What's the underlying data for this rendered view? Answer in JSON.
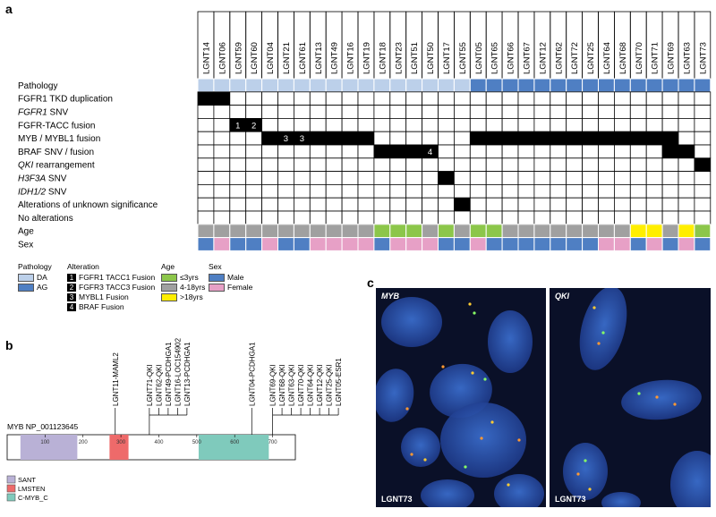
{
  "panels": {
    "a": "a",
    "b": "b",
    "c": "c"
  },
  "samples": [
    "LGNT14",
    "LGNT06",
    "LGNT59",
    "LGNT60",
    "LGNT04",
    "LGNT21",
    "LGNT61",
    "LGNT13",
    "LGNT49",
    "LGNT16",
    "LGNT19",
    "LGNT18",
    "LGNT23",
    "LGNT51",
    "LGNT50",
    "LGNT17",
    "LGNT55",
    "LGNT05",
    "LGNT65",
    "LGNT66",
    "LGNT67",
    "LGNT12",
    "LGNT62",
    "LGNT72",
    "LGNT25",
    "LGNT64",
    "LGNT68",
    "LGNT70",
    "LGNT71",
    "LGNT69",
    "LGNT63",
    "LGNT73"
  ],
  "rows": [
    {
      "label": "Pathology",
      "italic": false
    },
    {
      "label": "FGFR1 TKD duplication",
      "italic": false
    },
    {
      "label": "FGFR1 SNV",
      "italic": true,
      "italic_part": "FGFR1",
      "rest": " SNV"
    },
    {
      "label": "FGFR-TACC fusion",
      "italic": false
    },
    {
      "label": "MYB / MYBL1 fusion",
      "italic": false
    },
    {
      "label": "BRAF SNV / fusion",
      "italic": false
    },
    {
      "label": "QKI rearrangement",
      "italic": true,
      "italic_part": "QKI",
      "rest": " rearrangement"
    },
    {
      "label": "H3F3A SNV",
      "italic": true,
      "italic_part": "H3F3A",
      "rest": " SNV"
    },
    {
      "label": "IDH1/2 SNV",
      "italic": true,
      "italic_part": "IDH1/2",
      "rest": " SNV"
    },
    {
      "label": "Alterations of unknown significance",
      "italic": false
    },
    {
      "label": "No alterations",
      "italic": false
    },
    {
      "label": "Age",
      "italic": false
    },
    {
      "label": "Sex",
      "italic": false
    }
  ],
  "colors": {
    "DA": "#bcd0ea",
    "AG": "#4f7fc3",
    "young": "#8cc64a",
    "mid": "#a0a0a0",
    "old": "#ffee00",
    "male": "#4f7fc3",
    "female": "#e7a0c6",
    "alt": "#000000"
  },
  "pathology": [
    "DA",
    "DA",
    "DA",
    "DA",
    "DA",
    "DA",
    "DA",
    "DA",
    "DA",
    "DA",
    "DA",
    "DA",
    "DA",
    "DA",
    "DA",
    "DA",
    "DA",
    "AG",
    "AG",
    "AG",
    "AG",
    "AG",
    "AG",
    "AG",
    "AG",
    "AG",
    "AG",
    "AG",
    "AG",
    "AG",
    "AG",
    "AG"
  ],
  "alterations": {
    "1": [
      0,
      1
    ],
    "3": [
      2,
      3
    ],
    "4": [
      4,
      5,
      6,
      7,
      8,
      9,
      10,
      17,
      18,
      19,
      20,
      21,
      22,
      23,
      24,
      25,
      26,
      27,
      28,
      29
    ],
    "5": [
      11,
      12,
      13,
      14,
      29,
      30
    ],
    "6": [
      31
    ],
    "7": [
      15
    ],
    "9": [
      16
    ]
  },
  "cell_numbers": [
    {
      "row": 3,
      "col": 2,
      "text": "1"
    },
    {
      "row": 3,
      "col": 3,
      "text": "2"
    },
    {
      "row": 4,
      "col": 5,
      "text": "3"
    },
    {
      "row": 4,
      "col": 6,
      "text": "3"
    },
    {
      "row": 5,
      "col": 14,
      "text": "4"
    }
  ],
  "age": [
    "mid",
    "mid",
    "mid",
    "mid",
    "mid",
    "mid",
    "mid",
    "mid",
    "mid",
    "mid",
    "mid",
    "young",
    "young",
    "young",
    "mid",
    "young",
    "mid",
    "young",
    "young",
    "mid",
    "mid",
    "mid",
    "mid",
    "mid",
    "mid",
    "mid",
    "mid",
    "old",
    "old",
    "mid",
    "old",
    "young"
  ],
  "sex": [
    "male",
    "female",
    "male",
    "male",
    "female",
    "male",
    "male",
    "female",
    "female",
    "female",
    "female",
    "male",
    "female",
    "female",
    "female",
    "male",
    "male",
    "female",
    "male",
    "male",
    "male",
    "male",
    "male",
    "male",
    "male",
    "female",
    "female",
    "male",
    "female",
    "male",
    "female",
    "male"
  ],
  "legend": {
    "pathology": {
      "title": "Pathology",
      "items": [
        {
          "key": "DA",
          "label": "DA"
        },
        {
          "key": "AG",
          "label": "AG"
        }
      ]
    },
    "alteration": {
      "title": "Alteration",
      "items": [
        {
          "n": "1",
          "label": "FGFR1 TACC1 Fusion"
        },
        {
          "n": "2",
          "label": "FGFR3 TACC3 Fusion"
        },
        {
          "n": "3",
          "label": "MYBL1 Fusion"
        },
        {
          "n": "4",
          "label": "BRAF Fusion"
        }
      ]
    },
    "age": {
      "title": "Age",
      "items": [
        {
          "key": "young",
          "label": "≤3yrs"
        },
        {
          "key": "mid",
          "label": "4-18yrs"
        },
        {
          "key": "old",
          "label": ">18yrs"
        }
      ]
    },
    "sex": {
      "title": "Sex",
      "items": [
        {
          "key": "male",
          "label": "Male"
        },
        {
          "key": "female",
          "label": "Female"
        }
      ]
    }
  },
  "protein": {
    "name": "MYB NP_001123645",
    "length": 760,
    "ticks": [
      100,
      200,
      300,
      400,
      500,
      600,
      700
    ],
    "domains": [
      {
        "name": "SANT",
        "start": 35,
        "end": 185,
        "color": "#b9b1d6"
      },
      {
        "name": "LMSTEN",
        "start": 270,
        "end": 320,
        "color": "#ee6a6a"
      },
      {
        "name": "C-MYB_C",
        "start": 505,
        "end": 690,
        "color": "#7fcabc"
      }
    ],
    "groups": [
      {
        "pos": 285,
        "labels": [
          "LGNT11-MAML2"
        ]
      },
      {
        "pos": 375,
        "labels": [
          "LGNT71-QKI",
          "LGNT62-QKI",
          "LGNT49-PCDHGA1",
          "LGNT16-LOC154902",
          "LGNT13-PCDHGA1"
        ]
      },
      {
        "pos": 645,
        "labels": [
          "LGNT04-PCDHGA1"
        ]
      },
      {
        "pos": 700,
        "labels": [
          "LGNT69-QKI",
          "LGNT68-QKI",
          "LGNT63-QKI",
          "LGNT70-QKI",
          "LGNT64-QKI",
          "LGNT12-QKI",
          "LGNT25-QKI",
          "LGNT05-ESR1"
        ]
      }
    ]
  },
  "micrographs": [
    {
      "title": "MYB",
      "sample": "LGNT73"
    },
    {
      "title": "QKI",
      "sample": "LGNT73"
    }
  ]
}
